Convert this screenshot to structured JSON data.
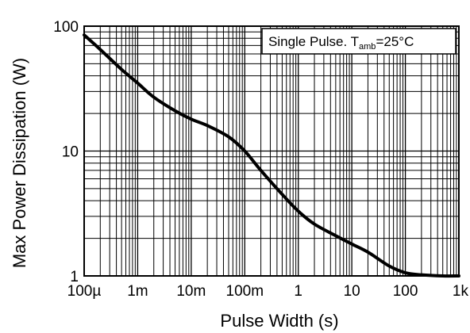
{
  "chart_data": {
    "type": "line",
    "title": "",
    "xlabel": "Pulse Width (s)",
    "ylabel": "Max Power Dissipation (W)",
    "x_scale": "log",
    "y_scale": "log",
    "xlim": [
      0.0001,
      1000
    ],
    "ylim": [
      1,
      100
    ],
    "grid": true,
    "x_ticks": [
      {
        "value": 0.0001,
        "label": "100µ"
      },
      {
        "value": 0.001,
        "label": "1m"
      },
      {
        "value": 0.01,
        "label": "10m"
      },
      {
        "value": 0.1,
        "label": "100m"
      },
      {
        "value": 1,
        "label": "1"
      },
      {
        "value": 10,
        "label": "10"
      },
      {
        "value": 100,
        "label": "100"
      },
      {
        "value": 1000,
        "label": "1k"
      }
    ],
    "y_ticks": [
      {
        "value": 1,
        "label": "1"
      },
      {
        "value": 10,
        "label": "10"
      },
      {
        "value": 100,
        "label": "100"
      }
    ],
    "annotation": {
      "text": "Single Pulse. T",
      "subscript": "amb",
      "suffix": "=25°C",
      "placement": "top-right"
    },
    "series": [
      {
        "x": [
          0.0001,
          0.0002,
          0.0005,
          0.001,
          0.002,
          0.005,
          0.01,
          0.02,
          0.05,
          0.1,
          0.2,
          0.5,
          1,
          2,
          5,
          10,
          20,
          50,
          100,
          200,
          500,
          1000
        ],
        "y": [
          85,
          65,
          45,
          35,
          27,
          21,
          18,
          16,
          13,
          10,
          7,
          4.5,
          3.3,
          2.6,
          2.1,
          1.8,
          1.55,
          1.2,
          1.06,
          1.02,
          1.0,
          1.0
        ]
      }
    ]
  }
}
